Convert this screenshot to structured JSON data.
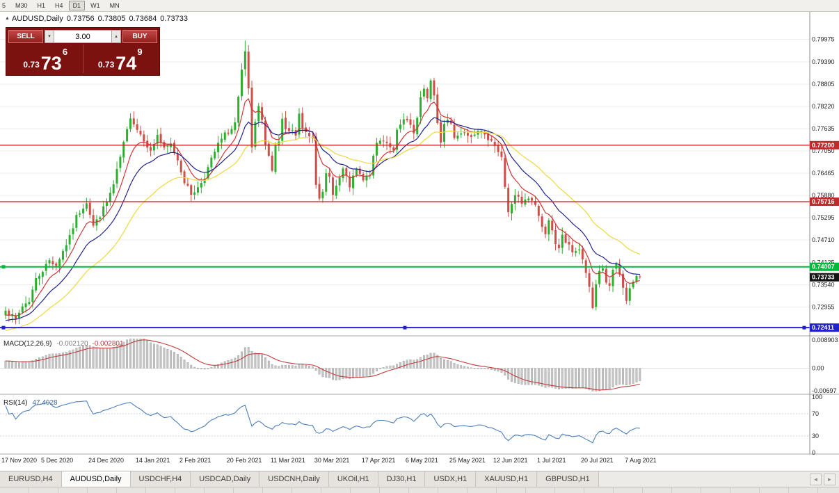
{
  "toolbar": {
    "periods": [
      {
        "label": "5",
        "active": false
      },
      {
        "label": "M30",
        "active": false
      },
      {
        "label": "H1",
        "active": false
      },
      {
        "label": "H4",
        "active": false
      },
      {
        "label": "D1",
        "active": true
      },
      {
        "label": "W1",
        "active": false
      },
      {
        "label": "MN",
        "active": false
      }
    ]
  },
  "icons": {
    "title_marker": "▲",
    "lot_up": "▴",
    "lot_down": "▾",
    "scroll_left": "◄",
    "scroll_right": "►"
  },
  "chart": {
    "title": {
      "symbol_timeframe": "AUDUSD,Daily",
      "open": "0.73756",
      "high": "0.73805",
      "low": "0.73684",
      "close": "0.73733"
    },
    "one_click": {
      "sell_label": "SELL",
      "buy_label": "BUY",
      "lot": "3.00",
      "sell_price": {
        "prefix": "0.73",
        "big": "73",
        "sup": "6"
      },
      "buy_price": {
        "prefix": "0.73",
        "big": "74",
        "sup": "9"
      }
    },
    "price_axis_labels": [
      "0.79975",
      "0.79390",
      "0.78805",
      "0.78220",
      "0.77635",
      "0.77050",
      "0.76465",
      "0.75880",
      "0.75295",
      "0.74710",
      "0.74125",
      "0.73540",
      "0.72955"
    ],
    "hlines": [
      {
        "value": 0.772,
        "label": "0.77200",
        "color": "#C02A2A",
        "width": 1.4,
        "handles": []
      },
      {
        "value": 0.75716,
        "label": "0.75716",
        "color": "#C02A2A",
        "width": 1.4,
        "handles": []
      },
      {
        "value": 0.74007,
        "label": "0.74007",
        "color": "#00B93B",
        "width": 2,
        "handles": [
          "left"
        ]
      },
      {
        "value": 0.72411,
        "label": "0.72411",
        "color": "#2222CC",
        "width": 2,
        "handles": [
          "left",
          "center",
          "right"
        ]
      }
    ],
    "current_price": {
      "value": 0.73733,
      "label": "0.73733",
      "color": "#141414"
    },
    "date_axis_labels": [
      {
        "index": 0,
        "label": "17 Nov 2020"
      },
      {
        "index": 13,
        "label": "5 Dec 2020"
      },
      {
        "index": 27,
        "label": "24 Dec 2020"
      },
      {
        "index": 41,
        "label": "14 Jan 2021"
      },
      {
        "index": 54,
        "label": "2 Feb 2021"
      },
      {
        "index": 68,
        "label": "20 Feb 2021"
      },
      {
        "index": 81,
        "label": "11 Mar 2021"
      },
      {
        "index": 94,
        "label": "30 Mar 2021"
      },
      {
        "index": 108,
        "label": "17 Apr 2021"
      },
      {
        "index": 121,
        "label": "6 May 2021"
      },
      {
        "index": 134,
        "label": "25 May 2021"
      },
      {
        "index": 147,
        "label": "12 Jun 2021"
      },
      {
        "index": 160,
        "label": "1 Jul 2021"
      },
      {
        "index": 173,
        "label": "20 Jul 2021"
      },
      {
        "index": 186,
        "label": "7 Aug 2021"
      }
    ]
  },
  "indicators": {
    "macd": {
      "name": "MACD(12,26,9)",
      "value_main": "-0.002120",
      "value_signal": "-0.002801",
      "axis_labels": [
        "0.008903",
        "0.00",
        "-0.00697"
      ],
      "range_max": 0.008903,
      "range_min": -0.00697,
      "fast": 12,
      "slow": 26,
      "signal": 9
    },
    "rsi": {
      "name": "RSI(14)",
      "value": "47.4028",
      "period": 14,
      "axis_labels": [
        "100",
        "70",
        "30",
        "0"
      ],
      "levels": [
        70,
        30
      ]
    }
  },
  "tabs": {
    "items": [
      {
        "label": "EURUSD,H4",
        "active": false
      },
      {
        "label": "AUDUSD,Daily",
        "active": true
      },
      {
        "label": "USDCHF,H4",
        "active": false
      },
      {
        "label": "USDCAD,Daily",
        "active": false
      },
      {
        "label": "USDCNH,Daily",
        "active": false
      },
      {
        "label": "UKOil,H1",
        "active": false
      },
      {
        "label": "DJ30,H1",
        "active": false
      },
      {
        "label": "USDX,H1",
        "active": false
      },
      {
        "label": "XAUUSD,H1",
        "active": false
      },
      {
        "label": "GBPUSD,H1",
        "active": false
      }
    ]
  },
  "colors": {
    "bull": "#2FAF2F",
    "bear": "#CE4F48",
    "grid": "#EBEBEB",
    "macd_hist_fill": "#C4C4C4",
    "macd_hist_stroke": "#9A9A9A",
    "macd_signal": "#C43B3B",
    "rsi": "#4A7EBB",
    "axis_text": "#1E1E1E",
    "pane_border": "#8C8C8C",
    "sep": "#A6A6A6"
  },
  "chart_data": {
    "type": "candlestick",
    "symbol": "AUDUSD",
    "timeframe": "Daily",
    "ohlc_last": {
      "open": 0.73756,
      "high": 0.73805,
      "low": 0.73684,
      "close": 0.73733
    },
    "num_candles": 189,
    "max_high": 0.7995,
    "min_low": 0.7289,
    "price_view_max": 0.807,
    "price_view_min": 0.7225,
    "close_keypoints": [
      [
        0,
        0.7292
      ],
      [
        1,
        0.7278
      ],
      [
        3,
        0.7262
      ],
      [
        5,
        0.7298
      ],
      [
        7,
        0.7312
      ],
      [
        9,
        0.7368
      ],
      [
        11,
        0.7392
      ],
      [
        13,
        0.7418
      ],
      [
        15,
        0.7405
      ],
      [
        17,
        0.7442
      ],
      [
        19,
        0.7478
      ],
      [
        21,
        0.7532
      ],
      [
        23,
        0.7558
      ],
      [
        24,
        0.7572
      ],
      [
        26,
        0.7508
      ],
      [
        28,
        0.7536
      ],
      [
        30,
        0.7572
      ],
      [
        32,
        0.7615
      ],
      [
        34,
        0.7688
      ],
      [
        36,
        0.7758
      ],
      [
        37,
        0.7796
      ],
      [
        39,
        0.7762
      ],
      [
        41,
        0.7736
      ],
      [
        43,
        0.7702
      ],
      [
        45,
        0.7748
      ],
      [
        47,
        0.7708
      ],
      [
        49,
        0.7722
      ],
      [
        51,
        0.7682
      ],
      [
        53,
        0.7625
      ],
      [
        55,
        0.7592
      ],
      [
        57,
        0.7608
      ],
      [
        59,
        0.7638
      ],
      [
        61,
        0.7682
      ],
      [
        63,
        0.7722
      ],
      [
        65,
        0.7748
      ],
      [
        67,
        0.7762
      ],
      [
        68,
        0.7778
      ],
      [
        69,
        0.7842
      ],
      [
        70,
        0.7912
      ],
      [
        71,
        0.7962
      ],
      [
        72,
        0.7868
      ],
      [
        73,
        0.7708
      ],
      [
        74,
        0.7775
      ],
      [
        75,
        0.7822
      ],
      [
        76,
        0.7782
      ],
      [
        77,
        0.7728
      ],
      [
        78,
        0.7692
      ],
      [
        79,
        0.7655
      ],
      [
        80,
        0.7716
      ],
      [
        81,
        0.7729
      ],
      [
        82,
        0.7786
      ],
      [
        83,
        0.7756
      ],
      [
        85,
        0.7756
      ],
      [
        86,
        0.7746
      ],
      [
        87,
        0.7801
      ],
      [
        88,
        0.7762
      ],
      [
        90,
        0.7746
      ],
      [
        91,
        0.7744
      ],
      [
        92,
        0.7622
      ],
      [
        93,
        0.7586
      ],
      [
        94,
        0.7592
      ],
      [
        95,
        0.7642
      ],
      [
        96,
        0.7636
      ],
      [
        97,
        0.7596
      ],
      [
        98,
        0.7612
      ],
      [
        100,
        0.7656
      ],
      [
        102,
        0.7612
      ],
      [
        104,
        0.7656
      ],
      [
        106,
        0.7626
      ],
      [
        108,
        0.7646
      ],
      [
        110,
        0.7726
      ],
      [
        112,
        0.7736
      ],
      [
        114,
        0.7718
      ],
      [
        115,
        0.7702
      ],
      [
        116,
        0.7756
      ],
      [
        118,
        0.7786
      ],
      [
        120,
        0.7772
      ],
      [
        121,
        0.7748
      ],
      [
        122,
        0.7786
      ],
      [
        123,
        0.7846
      ],
      [
        124,
        0.7872
      ],
      [
        125,
        0.7842
      ],
      [
        126,
        0.7886
      ],
      [
        127,
        0.7846
      ],
      [
        128,
        0.7782
      ],
      [
        129,
        0.7726
      ],
      [
        130,
        0.7776
      ],
      [
        131,
        0.7786
      ],
      [
        132,
        0.7781
      ],
      [
        133,
        0.7742
      ],
      [
        134,
        0.7746
      ],
      [
        136,
        0.7756
      ],
      [
        138,
        0.7746
      ],
      [
        140,
        0.7762
      ],
      [
        142,
        0.7742
      ],
      [
        144,
        0.7736
      ],
      [
        146,
        0.7702
      ],
      [
        147,
        0.7686
      ],
      [
        148,
        0.7612
      ],
      [
        149,
        0.7546
      ],
      [
        150,
        0.7562
      ],
      [
        151,
        0.7586
      ],
      [
        152,
        0.7581
      ],
      [
        153,
        0.7566
      ],
      [
        155,
        0.7581
      ],
      [
        157,
        0.7566
      ],
      [
        159,
        0.7502
      ],
      [
        160,
        0.7492
      ],
      [
        161,
        0.7526
      ],
      [
        162,
        0.7492
      ],
      [
        163,
        0.7456
      ],
      [
        164,
        0.7446
      ],
      [
        165,
        0.7486
      ],
      [
        166,
        0.7466
      ],
      [
        168,
        0.7442
      ],
      [
        170,
        0.7446
      ],
      [
        172,
        0.7386
      ],
      [
        173,
        0.7342
      ],
      [
        174,
        0.7292
      ],
      [
        175,
        0.7356
      ],
      [
        176,
        0.7392
      ],
      [
        177,
        0.7396
      ],
      [
        178,
        0.7362
      ],
      [
        179,
        0.7346
      ],
      [
        180,
        0.7392
      ],
      [
        181,
        0.7402
      ],
      [
        182,
        0.7376
      ],
      [
        183,
        0.7346
      ],
      [
        184,
        0.7312
      ],
      [
        185,
        0.7342
      ],
      [
        186,
        0.7356
      ],
      [
        187,
        0.7376
      ],
      [
        188,
        0.73733
      ]
    ],
    "moving_averages": [
      {
        "name": "fast",
        "period": 8,
        "color": "#D23434"
      },
      {
        "name": "medium",
        "period": 17,
        "color": "#20208C"
      },
      {
        "name": "slow",
        "period": 34,
        "color": "#EDD93B"
      }
    ]
  }
}
